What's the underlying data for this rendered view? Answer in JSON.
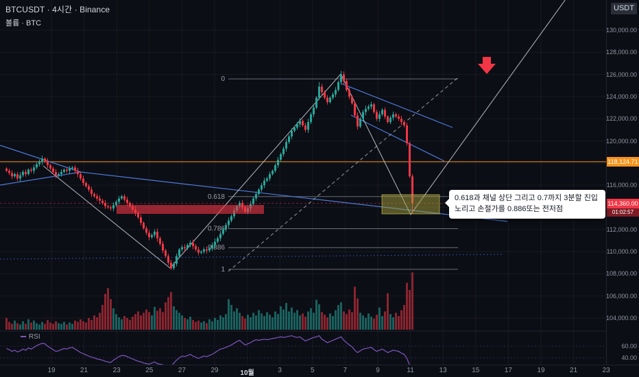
{
  "legend": {
    "line1": "BTCUSDT · 4시간 · Binance",
    "line2": "볼륨 · BTC"
  },
  "currency_chip": "USDT",
  "callout": {
    "text": "0.618과 채널 상단 그리고 0.7까지 3분할 진입 노리고 손절가를 0.886또는 전저점"
  },
  "price_axis": {
    "ticks": [
      {
        "label": "130,000.00",
        "price": 130000
      },
      {
        "label": "128,000.00",
        "price": 128000
      },
      {
        "label": "126,000.00",
        "price": 126000
      },
      {
        "label": "124,000.00",
        "price": 124000
      },
      {
        "label": "122,000.00",
        "price": 122000
      },
      {
        "label": "120,000.00",
        "price": 120000
      },
      {
        "label": "118,000.00",
        "price": 118000
      },
      {
        "label": "116,000.00",
        "price": 116000
      },
      {
        "label": "114,000.00",
        "price": 114000
      },
      {
        "label": "112,000.00",
        "price": 112000
      },
      {
        "label": "110,000.00",
        "price": 110000
      },
      {
        "label": "108,000.00",
        "price": 108000
      },
      {
        "label": "106,000.00",
        "price": 106000
      },
      {
        "label": "104,000.00",
        "price": 104000
      }
    ],
    "tags": [
      {
        "label": "118,124.71",
        "price": 118124.71,
        "color": "#f7931a"
      },
      {
        "label": "114,360.00",
        "price": 114360.0,
        "countdown": "01:02:57",
        "color": "#f23645"
      }
    ]
  },
  "rsi_axis": {
    "legend": "RSI",
    "ticks": [
      {
        "label": "60.00",
        "value": 60
      },
      {
        "label": "40.00",
        "value": 40
      }
    ]
  },
  "time_axis": {
    "labels": [
      "19",
      "21",
      "23",
      "25",
      "27",
      "29",
      "10월",
      "3",
      "5",
      "7",
      "9",
      "11",
      "13",
      "15",
      "17",
      "19",
      "21",
      "23"
    ]
  },
  "chart_data": {
    "type": "candlestick",
    "symbol": "BTCUSDT",
    "interval": "4시간",
    "exchange": "Binance",
    "volume_unit": "BTC",
    "price_range": [
      104000,
      130000
    ],
    "current_price": 114360.0,
    "marked_price": 118124.71,
    "first_open": 117500,
    "closes": [
      117300,
      117100,
      116800,
      117000,
      116600,
      116900,
      117200,
      117000,
      117400,
      117300,
      117600,
      117900,
      118100,
      118400,
      118200,
      117800,
      117500,
      117200,
      116900,
      117000,
      117200,
      117400,
      117300,
      117500,
      117600,
      117300,
      117000,
      116600,
      116200,
      115900,
      115600,
      115200,
      115000,
      114800,
      114600,
      114400,
      114100,
      114000,
      113900,
      114200,
      114500,
      114800,
      115000,
      114700,
      114400,
      114100,
      113800,
      113500,
      113100,
      112600,
      112100,
      111700,
      111300,
      111500,
      111800,
      111200,
      110700,
      110100,
      109600,
      109000,
      108500,
      108900,
      109600,
      110200,
      110400,
      110300,
      110600,
      110800,
      110500,
      110200,
      109900,
      110000,
      110200,
      110100,
      110300,
      110600,
      110900,
      111200,
      111600,
      112000,
      112400,
      112800,
      113200,
      113700,
      114100,
      114400,
      114000,
      113600,
      113900,
      114300,
      114800,
      115200,
      115600,
      116000,
      116400,
      116600,
      117000,
      117300,
      117800,
      118300,
      118800,
      119300,
      119900,
      120400,
      120900,
      121200,
      121500,
      121800,
      121400,
      121000,
      121700,
      122400,
      123000,
      123900,
      124900,
      124400,
      123900,
      123500,
      123900,
      124200,
      124600,
      125300,
      126000,
      125400,
      124600,
      124000,
      123400,
      122300,
      121300,
      122000,
      122600,
      122900,
      123100,
      123300,
      122600,
      122000,
      122400,
      122800,
      122200,
      121700,
      122100,
      122400,
      122200,
      122000,
      121700,
      121400,
      119800,
      116800,
      114360
    ],
    "volumes": [
      18,
      12,
      9,
      14,
      10,
      8,
      13,
      9,
      16,
      11,
      14,
      10,
      8,
      12,
      9,
      15,
      11,
      9,
      13,
      10,
      9,
      12,
      8,
      11,
      9,
      14,
      12,
      16,
      13,
      11,
      18,
      15,
      22,
      19,
      26,
      38,
      55,
      64,
      47,
      33,
      24,
      19,
      16,
      21,
      18,
      15,
      20,
      24,
      28,
      22,
      26,
      31,
      27,
      22,
      35,
      29,
      33,
      27,
      42,
      50,
      58,
      36,
      30,
      26,
      22,
      18,
      16,
      20,
      15,
      12,
      14,
      11,
      13,
      10,
      16,
      13,
      18,
      15,
      22,
      19,
      24,
      47,
      38,
      28,
      33,
      26,
      21,
      17,
      23,
      19,
      26,
      22,
      30,
      25,
      21,
      27,
      23,
      19,
      28,
      24,
      36,
      31,
      41,
      28,
      34,
      26,
      30,
      22,
      25,
      20,
      28,
      33,
      26,
      46,
      39,
      27,
      23,
      19,
      25,
      21,
      30,
      38,
      42,
      28,
      24,
      31,
      27,
      66,
      48,
      26,
      22,
      18,
      25,
      20,
      17,
      23,
      34,
      21,
      28,
      56,
      24,
      19,
      26,
      21,
      30,
      38,
      72,
      61,
      88
    ],
    "rsi_values": [
      56,
      54,
      51,
      53,
      50,
      52,
      55,
      53,
      57,
      55,
      58,
      61,
      63,
      65,
      64,
      60,
      57,
      54,
      51,
      52,
      54,
      56,
      55,
      57,
      58,
      55,
      52,
      49,
      47,
      45,
      43,
      41,
      40,
      38,
      37,
      36,
      34,
      33,
      32,
      36,
      39,
      42,
      44,
      44,
      42,
      40,
      38,
      36,
      34,
      33,
      31,
      30,
      29,
      31,
      33,
      30,
      29,
      28,
      27,
      26,
      25,
      31,
      36,
      40,
      43,
      42,
      44,
      46,
      43,
      41,
      39,
      41,
      43,
      42,
      44,
      46,
      49,
      52,
      55,
      56,
      58,
      60,
      62,
      65,
      68,
      70,
      66,
      62,
      64,
      66,
      69,
      71,
      70,
      71,
      72,
      71,
      72,
      73,
      74,
      75,
      76,
      75,
      76,
      77,
      78,
      76,
      75,
      76,
      72,
      69,
      71,
      73,
      75,
      76,
      78,
      72,
      69,
      66,
      68,
      70,
      72,
      74,
      76,
      70,
      66,
      62,
      59,
      53,
      49,
      52,
      55,
      56,
      57,
      58,
      54,
      51,
      53,
      55,
      52,
      49,
      51,
      53,
      52,
      51,
      48,
      46,
      39,
      27,
      17
    ],
    "wick_overrides": {
      "14": {
        "high": 118520
      },
      "60": {
        "low": 108350
      },
      "114": {
        "high": 125300
      },
      "122": {
        "high": 126320
      },
      "148": {
        "high": 117000,
        "low": 113420
      }
    },
    "fib": {
      "high": 125600,
      "low": 108400,
      "levels": [
        {
          "label": "0",
          "value": 0
        },
        {
          "label": "0.618",
          "value": 0.618
        },
        {
          "label": "0.786",
          "value": 0.786
        },
        {
          "label": "0.886",
          "value": 0.886
        },
        {
          "label": "1",
          "value": 1
        }
      ]
    },
    "colors": {
      "up": "#26a69a",
      "down": "#f23645",
      "volume_up": "rgba(38,166,154,0.55)",
      "volume_down": "rgba(242,54,69,0.55)",
      "rsi": "#7e57c2",
      "fib": "#9aa0aa",
      "blue_line": "#4c7bd9",
      "blue_dotted": "#3d5bd1",
      "gray_line": "rgba(209,212,220,0.8)",
      "orange_line": "#f7931a",
      "zone_red": "rgba(242,54,69,0.6)",
      "zone_olive": "rgba(164,158,60,0.5)"
    }
  }
}
